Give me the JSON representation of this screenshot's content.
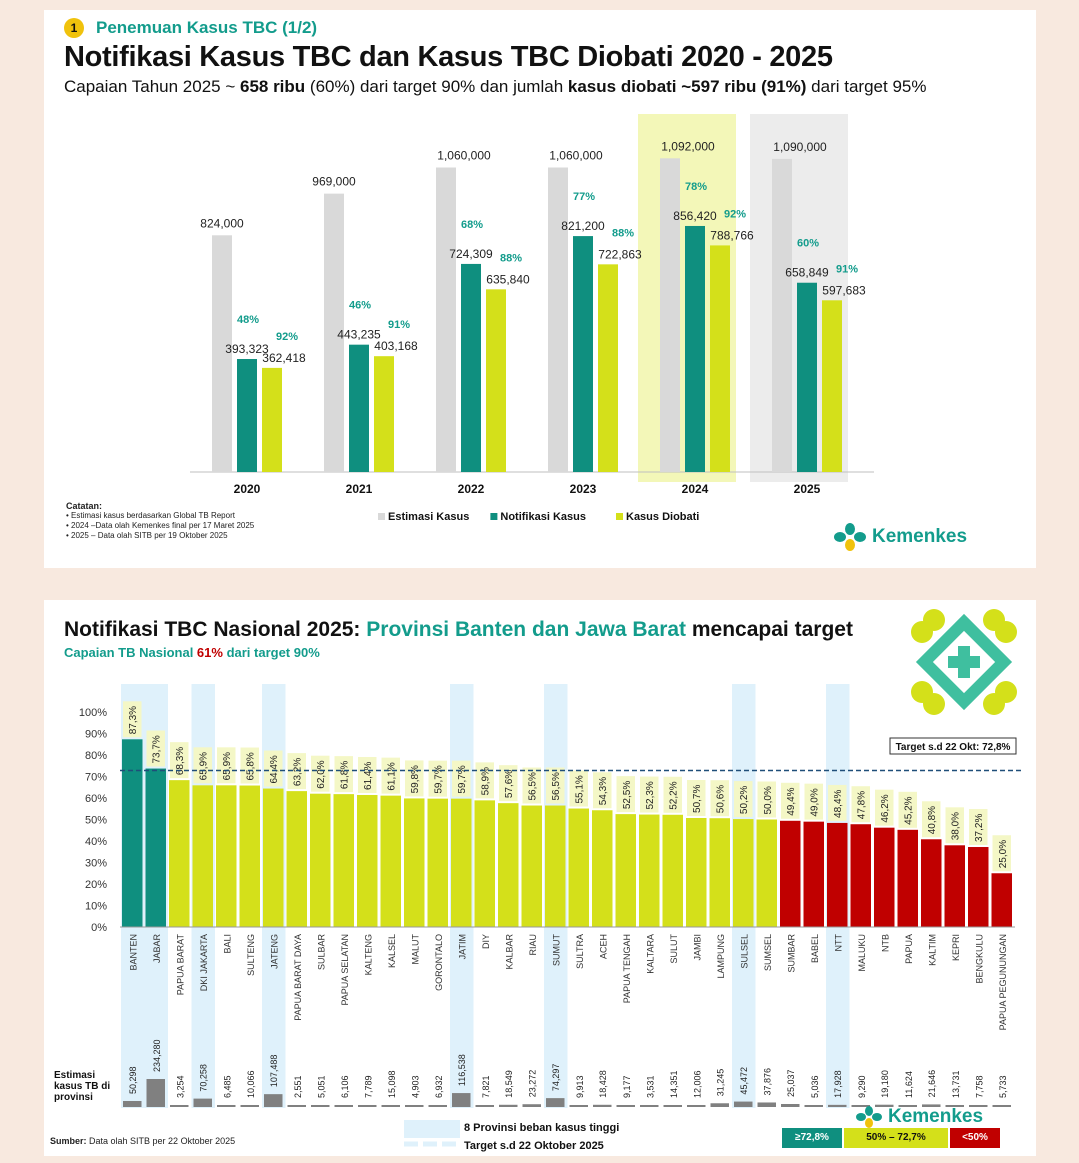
{
  "top": {
    "section_number": "1",
    "section_title": "Penemuan Kasus TBC (1/2)",
    "title": "Notifikasi Kasus TBC dan Kasus TBC Diobati 2020 - 2025",
    "subtitle": {
      "p1": "Capaian Tahun 2025 ~ ",
      "b1": "658 ribu",
      "p2": " (60%) dari target 90% dan jumlah ",
      "b2": "kasus diobati ~597 ribu (91%)",
      "p3": " dari target 95%"
    },
    "notes": {
      "heading": "Catatan:",
      "items": [
        "• Estimasi kasus berdasarkan Global TB Report",
        "• 2024 –Data olah Kemenkes final per 17 Maret 2025",
        "• 2025 – Data olah SITB per 19 Oktober 2025"
      ]
    },
    "logo_text": "Kemenkes"
  },
  "bottom": {
    "title_a": "Notifikasi TBC Nasional 2025: ",
    "title_b": "Provinsi Banten dan Jawa Barat",
    "title_c": " mencapai target",
    "sub_a": "Capaian TB Nasional ",
    "sub_b": "61%",
    "sub_c": " dari target 90%",
    "source_bold": "Sumber:",
    "source_rest": " Data olah SITB per 22 Oktober 2025",
    "estimasi_label": "Estimasi kasus TB di provinsi",
    "legend_high_burden": "8 Provinsi beban kasus tinggi",
    "legend_target": "Target s.d 22 Oktober 2025",
    "legend_green": "≥72,8%",
    "legend_yellow": "50% – 72,7%",
    "legend_red": "<50%",
    "logo_text": "Kemenkes"
  },
  "colors": {
    "teal": "#139c8c",
    "estimasi": "#d9d9d9",
    "notifikasi": "#0f8f7f",
    "diobati": "#d4e01a",
    "red": "#c00000",
    "yellow_label_bg": "#f4f7c6",
    "highlight_2024": "#f3f7b8",
    "highlight_2025": "#ececec",
    "high_burden": "#dff1fb"
  },
  "chart_data": [
    {
      "type": "bar",
      "title": "Notifikasi Kasus TBC dan Kasus TBC Diobati 2020 - 2025",
      "categories": [
        "2020",
        "2021",
        "2022",
        "2023",
        "2024",
        "2025"
      ],
      "series": [
        {
          "name": "Estimasi Kasus",
          "values": [
            824000,
            969000,
            1060000,
            1060000,
            1092000,
            1090000
          ],
          "labels": [
            "824,000",
            "969,000",
            "1,060,000",
            "1,060,000",
            "1,092,000",
            "1,090,000"
          ]
        },
        {
          "name": "Notifikasi Kasus",
          "values": [
            393323,
            443235,
            724309,
            821200,
            856420,
            658849
          ],
          "labels": [
            "393,323",
            "443,235",
            "724,309",
            "821,200",
            "856,420",
            "658,849"
          ],
          "pct": [
            "48%",
            "46%",
            "68%",
            "77%",
            "78%",
            "60%"
          ]
        },
        {
          "name": "Kasus Diobati",
          "values": [
            362418,
            403168,
            635840,
            722863,
            788766,
            597683
          ],
          "labels": [
            "362,418",
            "403,168",
            "635,840",
            "722,863",
            "788,766",
            "597,683"
          ],
          "pct": [
            "92%",
            "91%",
            "88%",
            "88%",
            "92%",
            "91%"
          ]
        }
      ],
      "highlight": {
        "2024": "yellow",
        "2025": "grey"
      },
      "ylim": [
        0,
        1100000
      ],
      "legend": "bottom"
    },
    {
      "type": "bar",
      "title": "Notifikasi TBC Nasional 2025",
      "ylabel": "",
      "yticks": [
        "0%",
        "10%",
        "20%",
        "30%",
        "40%",
        "50%",
        "60%",
        "70%",
        "80%",
        "90%",
        "100%"
      ],
      "ylim": [
        0,
        100
      ],
      "target_label": "Target s.d 22 Okt: 72,8%",
      "target_value": 72.8,
      "categories": [
        "BANTEN",
        "JABAR",
        "PAPUA BARAT",
        "DKI JAKARTA",
        "BALI",
        "SULTENG",
        "JATENG",
        "PAPUA BARAT DAYA",
        "SULBAR",
        "PAPUA SELATAN",
        "KALTENG",
        "KALSEL",
        "MALUT",
        "GORONTALO",
        "JATIM",
        "DIY",
        "KALBAR",
        "RIAU",
        "SUMUT",
        "SULTRA",
        "ACEH",
        "PAPUA TENGAH",
        "KALTARA",
        "SULUT",
        "JAMBI",
        "LAMPUNG",
        "SULSEL",
        "SUMSEL",
        "SUMBAR",
        "BABEL",
        "NTT",
        "MALUKU",
        "NTB",
        "PAPUA",
        "KALTIM",
        "KEPRI",
        "BENGKULU",
        "PAPUA PEGUNUNGAN"
      ],
      "values": [
        87.3,
        73.7,
        68.3,
        65.9,
        65.9,
        65.8,
        64.4,
        63.2,
        62.0,
        61.8,
        61.4,
        61.1,
        59.8,
        59.7,
        59.7,
        58.9,
        57.6,
        56.5,
        56.5,
        55.1,
        54.3,
        52.5,
        52.3,
        52.2,
        50.7,
        50.6,
        50.2,
        50.0,
        49.4,
        49.0,
        48.4,
        47.8,
        46.2,
        45.2,
        40.8,
        38.0,
        37.2,
        25.0
      ],
      "value_labels": [
        "87,3%",
        "73,7%",
        "68,3%",
        "65,9%",
        "65,9%",
        "65,8%",
        "64,4%",
        "63,2%",
        "62,0%",
        "61,8%",
        "61,4%",
        "61,1%",
        "59,8%",
        "59,7%",
        "59,7%",
        "58,9%",
        "57,6%",
        "56,5%",
        "56,5%",
        "55,1%",
        "54,3%",
        "52,5%",
        "52,3%",
        "52,2%",
        "50,7%",
        "50,6%",
        "50,2%",
        "50,0%",
        "49,4%",
        "49,0%",
        "48,4%",
        "47,8%",
        "46,2%",
        "45,2%",
        "40,8%",
        "38,0%",
        "37,2%",
        "25,0%"
      ],
      "estimasi": [
        50298,
        234280,
        3254,
        70258,
        6485,
        10066,
        107488,
        2551,
        5051,
        6106,
        7789,
        15098,
        4903,
        6932,
        116538,
        7821,
        18549,
        23272,
        74297,
        9913,
        18428,
        9177,
        3531,
        14351,
        12006,
        31245,
        45472,
        37876,
        25037,
        5036,
        17928,
        9290,
        19180,
        11624,
        21646,
        13731,
        7758,
        5733
      ],
      "estimasi_labels": [
        "50,298",
        "234,280",
        "3,254",
        "70,258",
        "6,485",
        "10,066",
        "107,488",
        "2,551",
        "5,051",
        "6,106",
        "7,789",
        "15,098",
        "4,903",
        "6,932",
        "116,538",
        "7,821",
        "18,549",
        "23,272",
        "74,297",
        "9,913",
        "18,428",
        "9,177",
        "3,531",
        "14,351",
        "12,006",
        "31,245",
        "45,472",
        "37,876",
        "25,037",
        "5,036",
        "17,928",
        "9,290",
        "19,180",
        "11,624",
        "21,646",
        "13,731",
        "7,758",
        "5,733"
      ],
      "high_burden": [
        "BANTEN",
        "DKI JAKARTA",
        "JATENG",
        "JATIM",
        "SUMUT",
        "SULSEL",
        "NTT",
        "JABAR"
      ],
      "thresholds": {
        "green": 72.8,
        "yellow_min": 50
      }
    }
  ]
}
